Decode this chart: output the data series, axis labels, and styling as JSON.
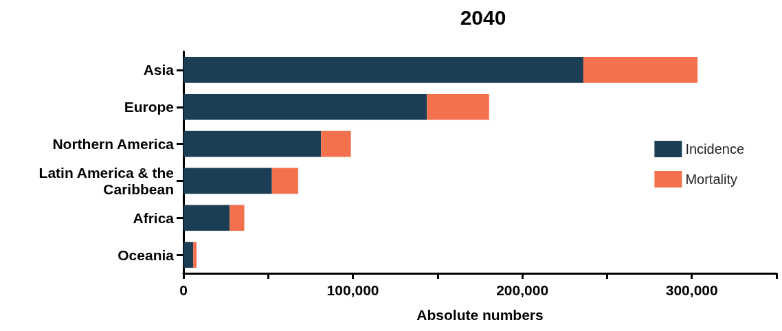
{
  "chart_data": {
    "type": "bar",
    "title": "2040",
    "xlabel": "Absolute numbers",
    "orientation": "horizontal",
    "stacked": true,
    "categories": [
      "Asia",
      "Europe",
      "Northern America",
      "Latin America & the Caribbean",
      "Africa",
      "Oceania"
    ],
    "series": [
      {
        "name": "Incidence",
        "color": "#1b3d55",
        "values": [
          236000,
          143700,
          81200,
          52200,
          27300,
          5700
        ]
      },
      {
        "name": "Mortality",
        "color": "#f4714d",
        "values": [
          67400,
          36700,
          17600,
          15500,
          8600,
          2000
        ]
      }
    ],
    "xlim": [
      0,
      350000
    ],
    "xticks": [
      {
        "value": 0,
        "label": "0"
      },
      {
        "value": 50000,
        "label": null
      },
      {
        "value": 100000,
        "label": "100,000"
      },
      {
        "value": 150000,
        "label": null
      },
      {
        "value": 200000,
        "label": "200,000"
      },
      {
        "value": 250000,
        "label": null
      },
      {
        "value": 300000,
        "label": "300,000"
      },
      {
        "value": 350000,
        "label": null
      }
    ],
    "grid": false,
    "legend": "right"
  }
}
